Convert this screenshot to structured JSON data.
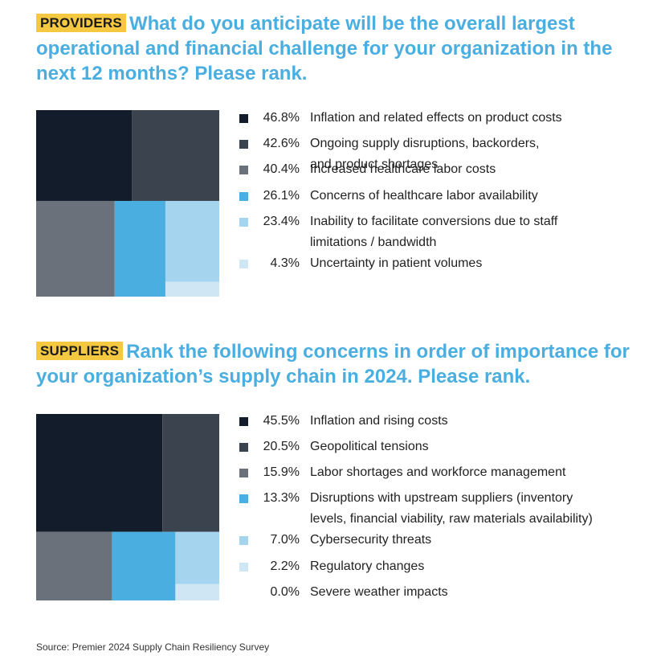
{
  "source": "Source: Premier 2024 Supply Chain Resiliency Survey",
  "colors": {
    "tag_bg": "#f5c842",
    "heading": "#4aaee0",
    "series": [
      "#121c2a",
      "#3b434e",
      "#6b717b",
      "#4aaee0",
      "#a5d4ee",
      "#cfe7f5",
      "#ffffff"
    ]
  },
  "chart_data": [
    {
      "type": "treemap",
      "tag": "PROVIDERS",
      "title": "What do you anticipate will be the overall largest operational and financial challenge for your organization in the next 12 months? Please rank.",
      "categories": [
        "Inflation and related effects on product costs",
        "Ongoing supply disruptions, backorders,\nand product shortages",
        "Increased healthcare labor costs",
        "Concerns of healthcare labor availability",
        "Inability to facilitate conversions due to staff\nlimitations / bandwidth",
        "Uncertainty in patient volumes"
      ],
      "values": [
        46.8,
        42.6,
        40.4,
        26.1,
        23.4,
        4.3
      ],
      "value_labels": [
        "46.8%",
        "42.6%",
        "40.4%",
        "26.1%",
        "23.4%",
        "4.3%"
      ]
    },
    {
      "type": "treemap",
      "tag": "SUPPLIERS",
      "title": "Rank the following concerns in order of importance for your organization’s supply chain in 2024. Please rank.",
      "categories": [
        "Inflation and rising costs",
        "Geopolitical tensions",
        "Labor shortages and workforce management",
        "Disruptions with upstream suppliers (inventory\nlevels, financial viability, raw materials availability)",
        "Cybersecurity threats",
        "Regulatory changes",
        "Severe weather impacts"
      ],
      "values": [
        45.5,
        20.5,
        15.9,
        13.3,
        7.0,
        2.2,
        0.0
      ],
      "value_labels": [
        "45.5%",
        "20.5%",
        "15.9%",
        "13.3%",
        "7.0%",
        "2.2%",
        "0.0%"
      ]
    }
  ]
}
